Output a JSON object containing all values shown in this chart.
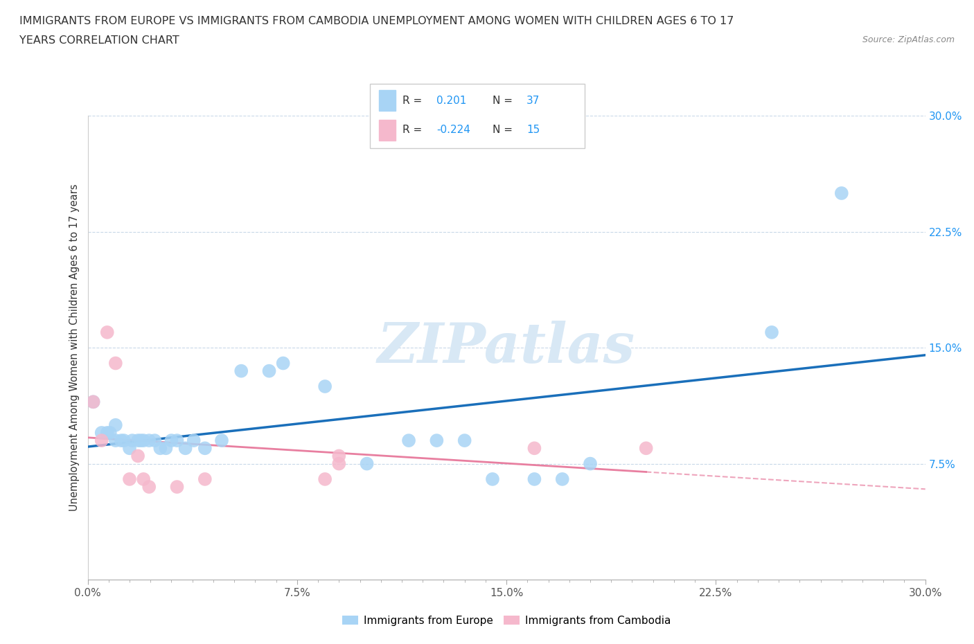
{
  "title_line1": "IMMIGRANTS FROM EUROPE VS IMMIGRANTS FROM CAMBODIA UNEMPLOYMENT AMONG WOMEN WITH CHILDREN AGES 6 TO 17",
  "title_line2": "YEARS CORRELATION CHART",
  "source": "Source: ZipAtlas.com",
  "ylabel": "Unemployment Among Women with Children Ages 6 to 17 years",
  "xlim": [
    0.0,
    0.3
  ],
  "ylim": [
    0.0,
    0.3
  ],
  "xtick_labels": [
    "0.0%",
    "",
    "",
    "",
    "",
    "",
    "",
    "",
    "",
    "",
    "7.5%",
    "",
    "",
    "",
    "",
    "",
    "",
    "",
    "",
    "",
    "15.0%",
    "",
    "",
    "",
    "",
    "",
    "",
    "",
    "",
    "",
    "22.5%",
    "",
    "",
    "",
    "",
    "",
    "",
    "",
    "",
    "",
    "30.0%"
  ],
  "xtick_values": [
    0.0,
    0.0075,
    0.015,
    0.0225,
    0.03,
    0.0375,
    0.045,
    0.0525,
    0.06,
    0.0675,
    0.075,
    0.0825,
    0.09,
    0.0975,
    0.105,
    0.1125,
    0.12,
    0.1275,
    0.135,
    0.1425,
    0.15,
    0.1575,
    0.165,
    0.1725,
    0.18,
    0.1875,
    0.195,
    0.2025,
    0.21,
    0.2175,
    0.225,
    0.2325,
    0.24,
    0.2475,
    0.255,
    0.2625,
    0.27,
    0.2775,
    0.285,
    0.2925,
    0.3
  ],
  "labeled_xtick_values": [
    0.0,
    0.075,
    0.15,
    0.225,
    0.3
  ],
  "labeled_xtick_labels": [
    "0.0%",
    "7.5%",
    "15.0%",
    "22.5%",
    "30.0%"
  ],
  "ytick_values": [
    0.075,
    0.15,
    0.225,
    0.3
  ],
  "ytick_labels": [
    "7.5%",
    "15.0%",
    "22.5%",
    "30.0%"
  ],
  "europe_R": "0.201",
  "europe_N": "37",
  "cambodia_R": "-0.224",
  "cambodia_N": "15",
  "europe_color": "#a8d4f5",
  "cambodia_color": "#f5b8cc",
  "europe_line_color": "#1a6fba",
  "cambodia_line_color": "#e87fa0",
  "watermark_color": "#d8e8f5",
  "europe_x": [
    0.002,
    0.005,
    0.007,
    0.008,
    0.01,
    0.01,
    0.012,
    0.013,
    0.015,
    0.016,
    0.018,
    0.019,
    0.02,
    0.022,
    0.024,
    0.026,
    0.028,
    0.03,
    0.032,
    0.035,
    0.038,
    0.042,
    0.048,
    0.055,
    0.065,
    0.07,
    0.085,
    0.1,
    0.115,
    0.125,
    0.135,
    0.145,
    0.16,
    0.17,
    0.18,
    0.245,
    0.27
  ],
  "europe_y": [
    0.115,
    0.095,
    0.095,
    0.095,
    0.09,
    0.1,
    0.09,
    0.09,
    0.085,
    0.09,
    0.09,
    0.09,
    0.09,
    0.09,
    0.09,
    0.085,
    0.085,
    0.09,
    0.09,
    0.085,
    0.09,
    0.085,
    0.09,
    0.135,
    0.135,
    0.14,
    0.125,
    0.075,
    0.09,
    0.09,
    0.09,
    0.065,
    0.065,
    0.065,
    0.075,
    0.16,
    0.25
  ],
  "cambodia_x": [
    0.002,
    0.005,
    0.007,
    0.01,
    0.015,
    0.018,
    0.02,
    0.022,
    0.032,
    0.042,
    0.085,
    0.09,
    0.09,
    0.16,
    0.2
  ],
  "cambodia_y": [
    0.115,
    0.09,
    0.16,
    0.14,
    0.065,
    0.08,
    0.065,
    0.06,
    0.06,
    0.065,
    0.065,
    0.075,
    0.08,
    0.085,
    0.085
  ]
}
